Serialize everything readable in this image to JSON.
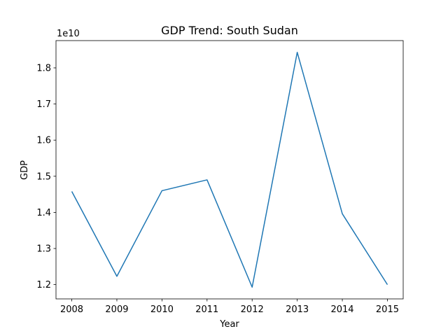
{
  "chart_data": {
    "type": "line",
    "title": "GDP Trend: South Sudan",
    "xlabel": "Year",
    "ylabel": "GDP",
    "y_offset_label": "1e10",
    "x": [
      "2008",
      "2009",
      "2010",
      "2011",
      "2012",
      "2013",
      "2014",
      "2015"
    ],
    "series": [
      {
        "values": [
          14580000000.0,
          12230000000.0,
          14600000000.0,
          14900000000.0,
          11930000000.0,
          18430000000.0,
          13960000000.0,
          12000000000.0
        ],
        "color": "#1f77b4"
      }
    ],
    "xlim": [
      2007.65,
      2015.35
    ],
    "ylim": [
      11605000000.0,
      18755000000.0
    ],
    "yticks": [
      12000000000.0,
      13000000000.0,
      14000000000.0,
      15000000000.0,
      16000000000.0,
      17000000000.0,
      18000000000.0
    ],
    "ytick_labels": [
      "1.2",
      "1.3",
      "1.4",
      "1.5",
      "1.6",
      "1.7",
      "1.8"
    ],
    "grid": false,
    "legend": false
  }
}
